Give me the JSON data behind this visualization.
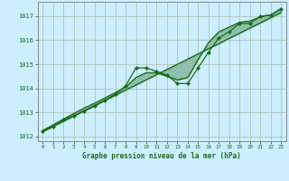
{
  "title": "Graphe pression niveau de la mer (hPa)",
  "background_color": "#cceeff",
  "grid_color": "#aabbaa",
  "line_color": "#1a6b1a",
  "x_ticks": [
    0,
    1,
    2,
    3,
    4,
    5,
    6,
    7,
    8,
    9,
    10,
    11,
    12,
    13,
    14,
    15,
    16,
    17,
    18,
    19,
    20,
    21,
    22,
    23
  ],
  "xlim": [
    -0.5,
    23.5
  ],
  "ylim": [
    1011.8,
    1017.6
  ],
  "yticks": [
    1012,
    1013,
    1014,
    1015,
    1016,
    1017
  ],
  "series_marked_x": [
    0,
    1,
    2,
    3,
    4,
    5,
    6,
    7,
    8,
    9,
    10,
    11,
    12,
    13,
    14,
    15,
    16,
    17,
    18,
    19,
    20,
    21,
    22,
    23
  ],
  "series_marked_y": [
    1012.2,
    1012.4,
    1012.7,
    1012.85,
    1013.05,
    1013.25,
    1013.5,
    1013.75,
    1014.1,
    1014.85,
    1014.85,
    1014.7,
    1014.55,
    1014.2,
    1014.2,
    1014.85,
    1015.5,
    1016.1,
    1016.35,
    1016.7,
    1016.7,
    1017.0,
    1017.05,
    1017.3
  ],
  "series_straight_x": [
    0,
    1,
    2,
    3,
    4,
    5,
    6,
    7,
    8,
    9,
    10,
    11,
    12,
    13,
    14,
    15,
    16,
    17,
    18,
    19,
    20,
    21,
    22,
    23
  ],
  "series_straight_y": [
    1012.2,
    1012.42,
    1012.63,
    1012.85,
    1013.07,
    1013.28,
    1013.5,
    1013.71,
    1013.93,
    1014.14,
    1014.36,
    1014.57,
    1014.79,
    1015.0,
    1015.22,
    1015.43,
    1015.65,
    1015.86,
    1016.08,
    1016.29,
    1016.51,
    1016.72,
    1016.94,
    1017.15
  ],
  "series_upper_x": [
    0,
    1,
    2,
    3,
    4,
    5,
    6,
    7,
    8,
    9,
    10,
    11,
    12,
    13,
    14,
    15,
    16,
    17,
    18,
    19,
    20,
    21,
    22,
    23
  ],
  "series_upper_y": [
    1012.25,
    1012.48,
    1012.72,
    1012.95,
    1013.18,
    1013.38,
    1013.6,
    1013.82,
    1014.05,
    1014.45,
    1014.65,
    1014.65,
    1014.5,
    1014.35,
    1014.45,
    1015.2,
    1015.9,
    1016.35,
    1016.55,
    1016.75,
    1016.8,
    1016.97,
    1017.05,
    1017.32
  ]
}
